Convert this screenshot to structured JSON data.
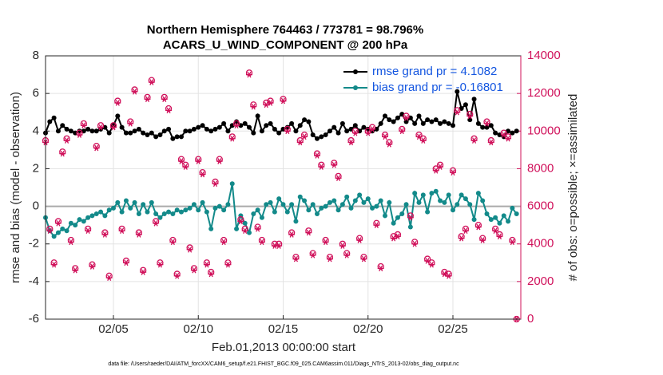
{
  "chart_data": {
    "type": "line",
    "title": "Northern Hemisphere 764463 / 773781 = 98.796%",
    "subtitle": "ACARS_U_WIND_COMPONENT @ 200 hPa",
    "x_label": "Feb.01,2013 00:00:00 start",
    "y_label": "rmse and bias (model - observation)",
    "y2_label": "# of obs: o=possible; ×=assimilated",
    "footnote": "data file: /Users/raeder/DAI/ATM_forcXX/CAM6_setup/f.e21.FHIST_BGC.f09_025.CAM6assim.011/Diags_NTrS_2013-02/obs_diag_output.nc",
    "xlim": [
      0,
      28
    ],
    "xticks": [
      {
        "value": 4,
        "label": "02/05"
      },
      {
        "value": 9,
        "label": "02/10"
      },
      {
        "value": 14,
        "label": "02/15"
      },
      {
        "value": 19,
        "label": "02/20"
      },
      {
        "value": 24,
        "label": "02/25"
      }
    ],
    "ylim": [
      -6,
      8
    ],
    "yticks": [
      -6,
      -4,
      -2,
      0,
      2,
      4,
      6,
      8
    ],
    "y2lim": [
      0,
      14000
    ],
    "y2ticks": [
      0,
      2000,
      4000,
      6000,
      8000,
      10000,
      12000,
      14000
    ],
    "y2_color": "#d0105a",
    "reference_line": 0,
    "grid": true,
    "legend": "upper right",
    "x": [
      0,
      0.25,
      0.5,
      0.75,
      1,
      1.25,
      1.5,
      1.75,
      2,
      2.25,
      2.5,
      2.75,
      3,
      3.25,
      3.5,
      3.75,
      4,
      4.25,
      4.5,
      4.75,
      5,
      5.25,
      5.5,
      5.75,
      6,
      6.25,
      6.5,
      6.75,
      7,
      7.25,
      7.5,
      7.75,
      8,
      8.25,
      8.5,
      8.75,
      9,
      9.25,
      9.5,
      9.75,
      10,
      10.25,
      10.5,
      10.75,
      11,
      11.25,
      11.5,
      11.75,
      12,
      12.25,
      12.5,
      12.75,
      13,
      13.25,
      13.5,
      13.75,
      14,
      14.25,
      14.5,
      14.75,
      15,
      15.25,
      15.5,
      15.75,
      16,
      16.25,
      16.5,
      16.75,
      17,
      17.25,
      17.5,
      17.75,
      18,
      18.25,
      18.5,
      18.75,
      19,
      19.25,
      19.5,
      19.75,
      20,
      20.25,
      20.5,
      20.75,
      21,
      21.25,
      21.5,
      21.75,
      22,
      22.25,
      22.5,
      22.75,
      23,
      23.25,
      23.5,
      23.75,
      24,
      24.25,
      24.5,
      24.75,
      25,
      25.25,
      25.5,
      25.75,
      26,
      26.25,
      26.5,
      26.75,
      27,
      27.25,
      27.5,
      27.75
    ],
    "series": [
      {
        "name": "rmse grand pr = 4.1082",
        "color": "#000000",
        "marker": "line",
        "values": [
          3.9,
          4.5,
          4.7,
          4.0,
          4.3,
          4.1,
          4.0,
          3.9,
          4.0,
          4.0,
          4.1,
          4.0,
          4.0,
          4.1,
          4.2,
          3.9,
          4.3,
          4.8,
          4.2,
          3.9,
          3.9,
          4.0,
          4.1,
          3.9,
          3.8,
          3.9,
          3.7,
          3.8,
          4.0,
          4.1,
          3.6,
          3.7,
          3.7,
          4.0,
          4.0,
          4.1,
          4.2,
          4.3,
          4.1,
          4.0,
          4.1,
          4.2,
          4.4,
          4.0,
          4.3,
          4.5,
          4.3,
          4.4,
          4.2,
          3.9,
          4.8,
          4.0,
          4.3,
          4.4,
          4.1,
          3.9,
          4.1,
          4.2,
          4.4,
          4.0,
          4.3,
          4.6,
          4.5,
          3.8,
          3.6,
          3.7,
          3.8,
          4.0,
          4.2,
          3.9,
          4.4,
          4.0,
          4.1,
          4.3,
          4.0,
          4.2,
          4.1,
          4.0,
          4.1,
          4.4,
          4.8,
          4.6,
          4.5,
          4.7,
          4.9,
          4.5,
          4.7,
          4.4,
          4.8,
          4.4,
          4.6,
          4.5,
          4.6,
          4.4,
          4.5,
          4.4,
          4.3,
          6.1,
          5.2,
          5.4,
          4.6,
          5.7,
          4.4,
          4.2,
          4.2,
          4.3,
          3.9,
          3.8,
          3.7,
          4.0,
          3.9,
          4.0
        ]
      },
      {
        "name": "bias grand pr = -0.16801",
        "color": "#138a8a",
        "marker": "line",
        "values": [
          -0.6,
          -1.3,
          -1.6,
          -1.4,
          -1.2,
          -1.3,
          -0.9,
          -1.0,
          -0.7,
          -0.8,
          -0.6,
          -0.5,
          -0.4,
          -0.3,
          -0.5,
          -0.2,
          -0.1,
          0.2,
          -0.3,
          0.3,
          -0.1,
          0.2,
          -0.4,
          0.1,
          -0.3,
          0.2,
          -0.4,
          -0.6,
          -0.4,
          -0.3,
          -0.4,
          -0.2,
          -0.3,
          -0.2,
          -0.1,
          0.1,
          -0.2,
          0.2,
          -0.3,
          -1.2,
          -0.1,
          0.0,
          -0.2,
          0.1,
          1.2,
          -1.2,
          -0.5,
          -0.9,
          -1.4,
          -0.4,
          -0.2,
          -0.6,
          0.1,
          0.2,
          -0.3,
          0.4,
          0.1,
          -0.3,
          0.1,
          -0.8,
          0.5,
          0.3,
          -0.2,
          0.1,
          -0.4,
          -0.1,
          0.0,
          0.2,
          0.3,
          -0.2,
          0.1,
          0.5,
          -0.1,
          0.3,
          0.6,
          0.2,
          0.4,
          -0.1,
          0.0,
          0.3,
          -0.5,
          0.2,
          -0.9,
          -0.6,
          -0.4,
          0.1,
          -1.1,
          0.7,
          0.2,
          0.6,
          -0.3,
          0.7,
          0.8,
          0.3,
          0.2,
          0.6,
          -0.2,
          0.1,
          0.6,
          0.4,
          0.1,
          -0.7,
          0.7,
          0.3,
          -0.4,
          -0.7,
          -0.6,
          -0.9,
          -0.5,
          -0.8,
          -0.1,
          -0.4
        ]
      },
      {
        "color": "#d0105a",
        "marker": "circle",
        "axis": "y2",
        "values": [
          9500,
          4800,
          3000,
          5200,
          8900,
          9600,
          4200,
          2700,
          9900,
          10400,
          4800,
          2900,
          9200,
          10300,
          4600,
          2300,
          10300,
          11600,
          4800,
          3100,
          10500,
          12200,
          4600,
          2600,
          11800,
          12700,
          5200,
          3000,
          11800,
          11200,
          4200,
          2400,
          8500,
          8200,
          3800,
          2700,
          8500,
          7800,
          3000,
          2500,
          7300,
          8500,
          4200,
          3000,
          9700,
          10400,
          5300,
          4800,
          13100,
          11400,
          4900,
          4200,
          11500,
          11600,
          4000,
          4000,
          11700,
          10100,
          4600,
          3300,
          9500,
          9800,
          4700,
          3500,
          8800,
          8200,
          4200,
          3300,
          8300,
          7600,
          4000,
          3500,
          9500,
          10000,
          4300,
          3300,
          10000,
          10200,
          5100,
          2800,
          9800,
          9400,
          4400,
          4500,
          10100,
          10800,
          5500,
          4100,
          9800,
          9600,
          3200,
          3000,
          8000,
          8200,
          2500,
          2400,
          7900,
          11100,
          4400,
          4800,
          10900,
          9600,
          5000,
          4300,
          10500,
          9500,
          4800,
          4500,
          9900,
          9700,
          4200,
          0
        ]
      },
      {
        "color": "#d0105a",
        "marker": "asterisk",
        "axis": "y2",
        "values": [
          9400,
          4700,
          2900,
          5100,
          8800,
          9500,
          4100,
          2600,
          9800,
          10300,
          4700,
          2800,
          9100,
          10200,
          4500,
          2200,
          10200,
          11500,
          4700,
          3000,
          10400,
          12100,
          4500,
          2500,
          11700,
          12600,
          5100,
          2900,
          11700,
          11100,
          4100,
          2300,
          8400,
          8100,
          3700,
          2600,
          8400,
          7700,
          2900,
          2400,
          7200,
          8400,
          4100,
          2900,
          9600,
          10300,
          5200,
          4700,
          13000,
          11300,
          4800,
          4100,
          11400,
          11500,
          3900,
          3900,
          11600,
          10000,
          4500,
          3200,
          9400,
          9700,
          4600,
          3400,
          8700,
          8100,
          4100,
          3200,
          8200,
          7500,
          3900,
          3400,
          9400,
          9900,
          4200,
          3200,
          9900,
          10100,
          5000,
          2700,
          9700,
          9300,
          4300,
          4400,
          10000,
          10700,
          5400,
          4000,
          9700,
          9500,
          3100,
          2900,
          7900,
          8100,
          2400,
          2300,
          7800,
          11000,
          4300,
          4700,
          10800,
          9500,
          4900,
          4200,
          10400,
          9400,
          4700,
          4400,
          9800,
          9600,
          4100,
          0
        ]
      }
    ]
  }
}
